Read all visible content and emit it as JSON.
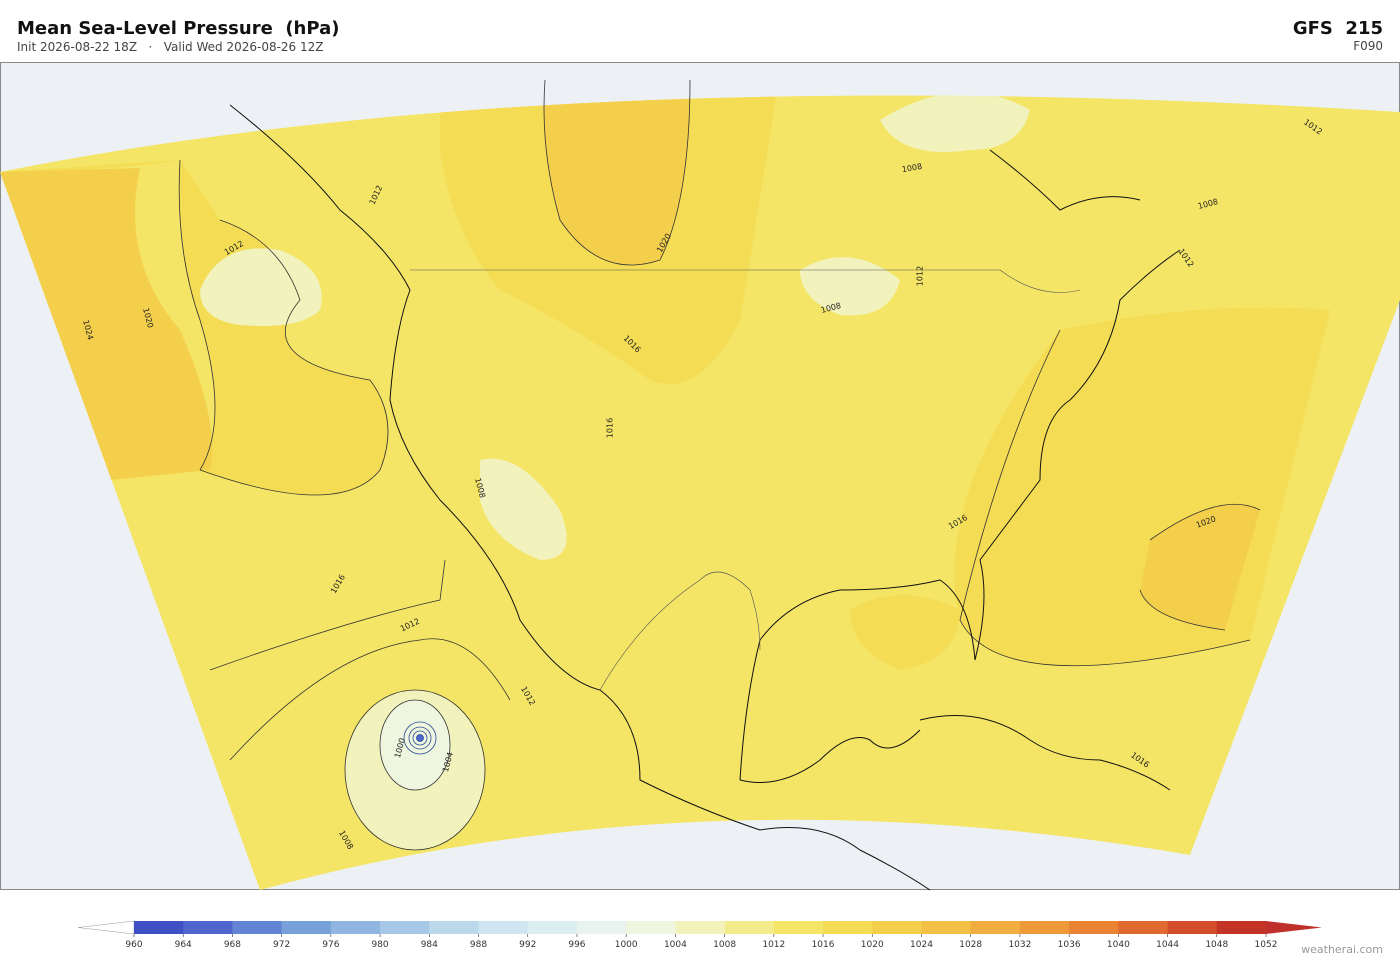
{
  "header": {
    "title": "Mean Sea-Level Pressure  (hPa)",
    "subtitle": "Init 2026-08-22 18Z   ·   Valid Wed 2026-08-26 12Z",
    "model": "GFS  215",
    "forecast_hour": "F090"
  },
  "map": {
    "contour_labels": [
      1024,
      1020,
      1012,
      1012,
      1020,
      1016,
      1016,
      1008,
      1016,
      1012,
      1012,
      1008,
      1004,
      1000,
      1008,
      1008,
      1012,
      1008,
      1012,
      1016,
      1020,
      1016,
      1012
    ]
  },
  "colorbar": {
    "ticks": [
      960,
      964,
      968,
      972,
      976,
      980,
      984,
      988,
      992,
      996,
      1000,
      1004,
      1008,
      1012,
      1016,
      1020,
      1024,
      1028,
      1032,
      1036,
      1040,
      1044,
      1048,
      1052
    ],
    "colors": [
      "#3f4fc4",
      "#5066cc",
      "#6384d4",
      "#78a0da",
      "#8fb5e0",
      "#a6c8e6",
      "#bcd9ec",
      "#cfe5ef",
      "#ddeef1",
      "#e8f3ef",
      "#eef6e0",
      "#f1f2bc",
      "#f3ec8c",
      "#f4e566",
      "#f5dc55",
      "#f4cf4c",
      "#f3c046",
      "#f1ad40",
      "#ee9a3a",
      "#ea8334",
      "#e0692f",
      "#d24e2a",
      "#c33426"
    ],
    "under_color": "#ffffff",
    "over_color": "#c0302a"
  },
  "footer": {
    "credit": "weatherai.com"
  }
}
